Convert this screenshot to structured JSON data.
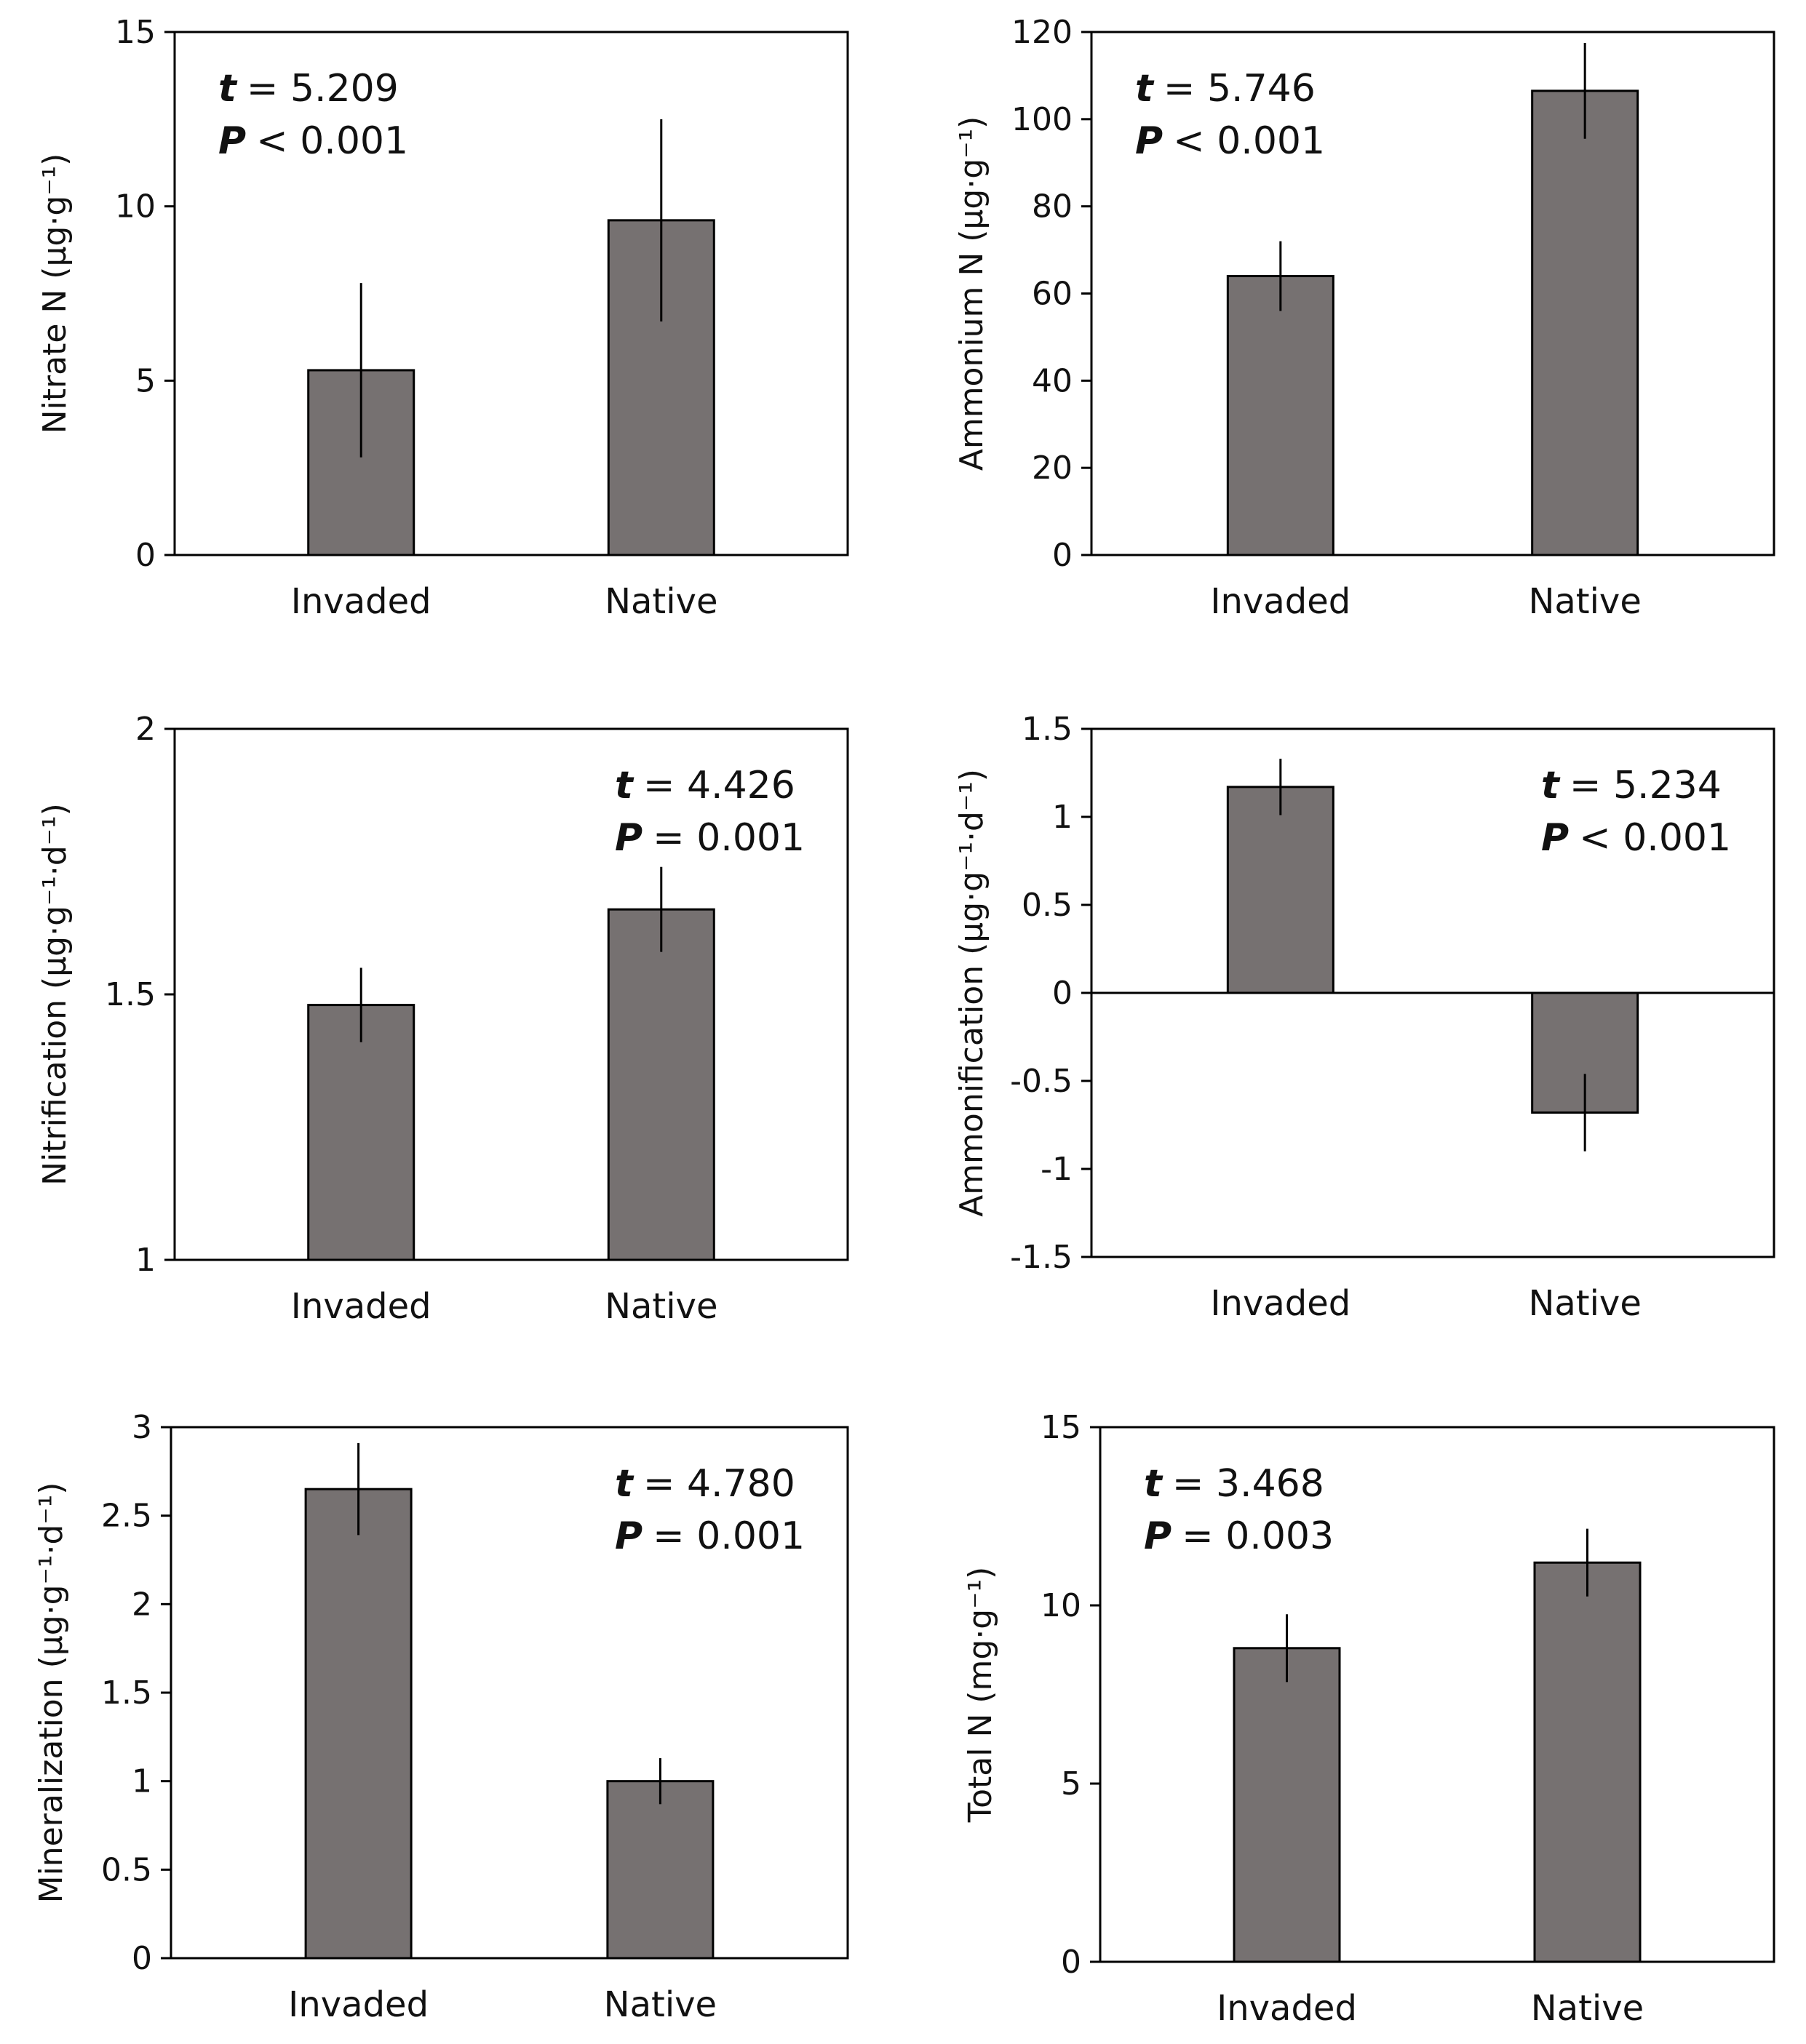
{
  "figure": {
    "bar_color": "#767171",
    "bar_edge": "#000000",
    "axis_color": "#000000"
  },
  "chart_data": [
    {
      "type": "bar",
      "ylabel": "Nitrate N (μg·g⁻¹)",
      "categories": [
        "Invaded",
        "Native"
      ],
      "values": [
        5.3,
        9.6
      ],
      "errors": [
        2.5,
        2.9
      ],
      "ylim": [
        0,
        15
      ],
      "yticks": [
        0,
        5,
        10,
        15
      ],
      "ytick_labels": [
        "0",
        "5",
        "10",
        "15"
      ],
      "annotation": {
        "position": "top-left",
        "t_symbol": "t",
        "t_value": "= 5.209",
        "p_symbol": "P",
        "p_value": "< 0.001"
      }
    },
    {
      "type": "bar",
      "ylabel": "Ammonium N (μg·g⁻¹)",
      "categories": [
        "Invaded",
        "Native"
      ],
      "values": [
        64,
        106.5
      ],
      "errors": [
        8,
        11
      ],
      "ylim": [
        0,
        120
      ],
      "yticks": [
        0,
        20,
        40,
        60,
        80,
        100,
        120
      ],
      "ytick_labels": [
        "0",
        "20",
        "40",
        "60",
        "80",
        "100",
        "120"
      ],
      "annotation": {
        "position": "top-left",
        "t_symbol": "t",
        "t_value": "= 5.746",
        "p_symbol": "P",
        "p_value": "< 0.001"
      }
    },
    {
      "type": "bar",
      "ylabel": "Nitrification (μg·g⁻¹·d⁻¹)",
      "categories": [
        "Invaded",
        "Native"
      ],
      "values": [
        1.48,
        1.66
      ],
      "errors": [
        0.07,
        0.08
      ],
      "ylim": [
        1,
        2
      ],
      "yticks": [
        1,
        1.5,
        2
      ],
      "ytick_labels": [
        "1",
        "1.5",
        "2"
      ],
      "annotation": {
        "position": "top-right",
        "t_symbol": "t",
        "t_value": "= 4.426",
        "p_symbol": "P",
        "p_value": "= 0.001"
      }
    },
    {
      "type": "bar",
      "ylabel": "Ammonification (μg·g⁻¹·d⁻¹)",
      "categories": [
        "Invaded",
        "Native"
      ],
      "values": [
        1.17,
        -0.68
      ],
      "errors": [
        0.16,
        0.22
      ],
      "ylim": [
        -1.5,
        1.5
      ],
      "yticks": [
        -1.5,
        -1,
        -0.5,
        0,
        0.5,
        1,
        1.5
      ],
      "ytick_labels": [
        "-1.5",
        "-1",
        "-0.5",
        "0",
        "0.5",
        "1",
        "1.5"
      ],
      "annotation": {
        "position": "top-right",
        "t_symbol": "t",
        "t_value": "= 5.234",
        "p_symbol": "P",
        "p_value": "< 0.001"
      }
    },
    {
      "type": "bar",
      "ylabel": "Mineralization (μg·g⁻¹·d⁻¹)",
      "categories": [
        "Invaded",
        "Native"
      ],
      "values": [
        2.65,
        1.0
      ],
      "errors": [
        0.26,
        0.13
      ],
      "ylim": [
        0,
        3
      ],
      "yticks": [
        0,
        0.5,
        1,
        1.5,
        2,
        2.5,
        3
      ],
      "ytick_labels": [
        "0",
        "0.5",
        "1",
        "1.5",
        "2",
        "2.5",
        "3"
      ],
      "annotation": {
        "position": "top-right",
        "t_symbol": "t",
        "t_value": "= 4.780",
        "p_symbol": "P",
        "p_value": "= 0.001"
      }
    },
    {
      "type": "bar",
      "ylabel": "Total N (mg·g⁻¹)",
      "categories": [
        "Invaded",
        "Native"
      ],
      "values": [
        8.8,
        11.2
      ],
      "errors": [
        0.95,
        0.95
      ],
      "ylim": [
        0,
        15
      ],
      "yticks": [
        0,
        5,
        10,
        15
      ],
      "ytick_labels": [
        "0",
        "5",
        "10",
        "15"
      ],
      "annotation": {
        "position": "top-left",
        "t_symbol": "t",
        "t_value": "= 3.468",
        "p_symbol": "P",
        "p_value": "= 0.003"
      }
    }
  ]
}
